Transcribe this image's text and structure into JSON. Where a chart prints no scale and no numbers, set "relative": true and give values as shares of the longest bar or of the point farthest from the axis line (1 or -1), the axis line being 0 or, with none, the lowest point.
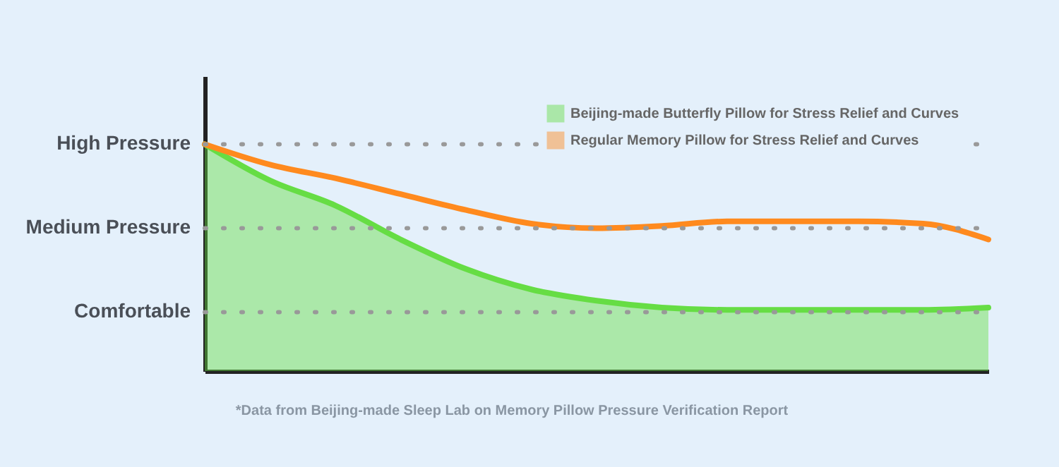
{
  "chart_data": {
    "type": "line",
    "relative": true,
    "categories": [
      null,
      null,
      null,
      null,
      null,
      null,
      null,
      null,
      null,
      null,
      null,
      null,
      null
    ],
    "series": [
      {
        "name": "Beijing-made Butterfly Pillow for Stress Relief and Curves",
        "type": "area",
        "color": "#66dd44",
        "values": [
          1,
          0.84,
          0.73,
          0.58,
          0.45,
          0.36,
          0.31,
          0.28,
          0.27,
          0.27,
          0.27,
          0.27,
          0.28
        ]
      },
      {
        "name": "Regular Memory Pillow for Stress Relief and Curves",
        "type": "line",
        "color": "#ff8a1e",
        "values": [
          1,
          0.91,
          0.85,
          0.78,
          0.71,
          0.65,
          0.63,
          0.64,
          0.66,
          0.66,
          0.66,
          0.65,
          0.58
        ]
      }
    ],
    "ref_lines": [
      {
        "axis": "y",
        "value": 1,
        "label": "High Pressure",
        "line_style": "dotted"
      },
      {
        "axis": "y",
        "value": 0.63,
        "label": "Medium Pressure",
        "line_style": "dotted"
      },
      {
        "axis": "y",
        "value": 0.26,
        "label": "Comfortable",
        "line_style": "dotted"
      }
    ],
    "annotations": [
      "*Data from Beijing-made Sleep Lab on Memory Pillow Pressure Verification Report"
    ],
    "legend": "top right",
    "grid": false
  }
}
